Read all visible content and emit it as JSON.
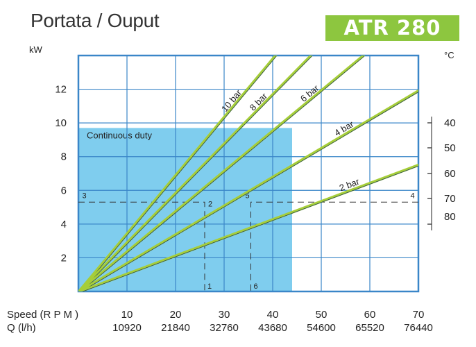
{
  "header": {
    "title": "Portata / Ouput",
    "model_badge": "ATR 280"
  },
  "colors": {
    "grid": "#3a86c8",
    "continuous_duty_fill": "#7fcdee",
    "curve": "#a6ce39",
    "badge": "#8dc63f"
  },
  "chart_data": {
    "type": "line",
    "ylabel": "kW",
    "y2label": "°C",
    "xlabel_rows": [
      {
        "label": "Speed (R P M )",
        "ticks": [
          "10",
          "20",
          "30",
          "40",
          "50",
          "60",
          "70"
        ]
      },
      {
        "label": "Q (l/h)",
        "ticks": [
          "10920",
          "21840",
          "32760",
          "43680",
          "54600",
          "65520",
          "76440"
        ]
      }
    ],
    "x_ticks": [
      10,
      20,
      30,
      40,
      50,
      60,
      70
    ],
    "xlim": [
      0,
      70
    ],
    "y_ticks": [
      2,
      4,
      6,
      8,
      10,
      12
    ],
    "ylim": [
      0,
      14
    ],
    "y2_ticks": [
      "40",
      "50",
      "60",
      "70",
      "80"
    ],
    "grid": true,
    "region": {
      "label": "Continuous duty",
      "x": [
        0,
        44
      ],
      "y": [
        0,
        9.7
      ]
    },
    "series": [
      {
        "name": "10 bar",
        "x": [
          0,
          40.6
        ],
        "y": [
          0,
          14
        ]
      },
      {
        "name": "8 bar",
        "x": [
          0,
          47.9
        ],
        "y": [
          0,
          14
        ]
      },
      {
        "name": "6 bar",
        "x": [
          0,
          58.7
        ],
        "y": [
          0,
          14
        ]
      },
      {
        "name": "4 bar",
        "x": [
          0,
          70
        ],
        "y": [
          0,
          11.9
        ]
      },
      {
        "name": "2 bar",
        "x": [
          0,
          70
        ],
        "y": [
          0,
          7.5
        ]
      }
    ],
    "annotations": [
      {
        "label": "3",
        "x": 0.5,
        "y": 5.3
      },
      {
        "label": "2",
        "x": 26,
        "y": 5.3
      },
      {
        "label": "1",
        "x": 26,
        "y": 0
      },
      {
        "label": "5",
        "x": 35.5,
        "y": 5.3
      },
      {
        "label": "6",
        "x": 35.5,
        "y": 0
      },
      {
        "label": "4",
        "x": 69.5,
        "y": 5.3
      }
    ],
    "dashed_paths": [
      {
        "x": [
          0,
          26,
          26
        ],
        "y": [
          5.3,
          5.3,
          0
        ]
      },
      {
        "x": [
          70,
          35.5,
          35.5
        ],
        "y": [
          5.3,
          5.3,
          0
        ]
      }
    ]
  }
}
